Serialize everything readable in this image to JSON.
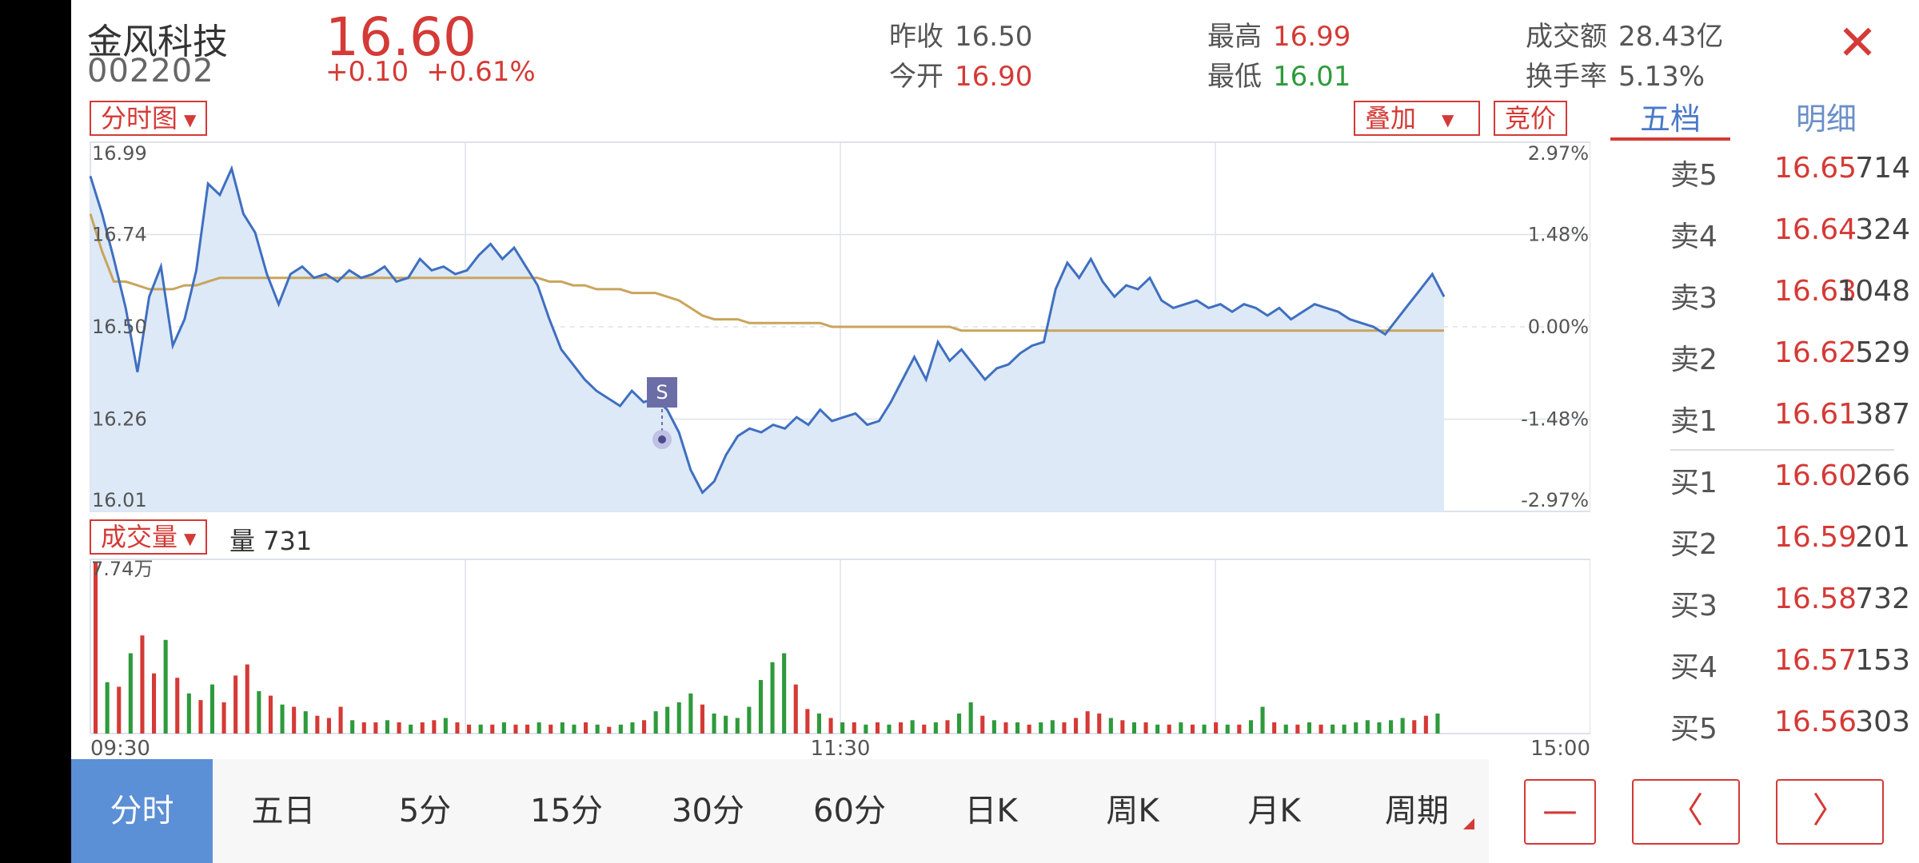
{
  "stock": {
    "name": "金风科技",
    "code": "002202",
    "price": "16.60",
    "change": "+0.10",
    "change_pct": "+0.61%"
  },
  "stats": {
    "prev_close_label": "昨收",
    "prev_close": "16.50",
    "open_label": "今开",
    "open": "16.90",
    "high_label": "最高",
    "high": "16.99",
    "low_label": "最低",
    "low": "16.01",
    "turnover_label": "成交额",
    "turnover": "28.43亿",
    "turnover_rate_label": "换手率",
    "turnover_rate": "5.13%"
  },
  "controls": {
    "chart_type": "分时图",
    "overlay": "叠加",
    "auction": "竞价",
    "volume_selector": "成交量",
    "volume_label": "量 731",
    "signal_marker": "S"
  },
  "tabs": {
    "depth": "五档",
    "detail": "明细"
  },
  "order_book": {
    "asks": [
      {
        "label": "卖5",
        "price": "16.65",
        "volume": "714"
      },
      {
        "label": "卖4",
        "price": "16.64",
        "volume": "324"
      },
      {
        "label": "卖3",
        "price": "16.63",
        "volume": "1048"
      },
      {
        "label": "卖2",
        "price": "16.62",
        "volume": "529"
      },
      {
        "label": "卖1",
        "price": "16.61",
        "volume": "387"
      }
    ],
    "bids": [
      {
        "label": "买1",
        "price": "16.60",
        "volume": "266"
      },
      {
        "label": "买2",
        "price": "16.59",
        "volume": "201"
      },
      {
        "label": "买3",
        "price": "16.58",
        "volume": "732"
      },
      {
        "label": "买4",
        "price": "16.57",
        "volume": "153"
      },
      {
        "label": "买5",
        "price": "16.56",
        "volume": "303"
      }
    ]
  },
  "periods": [
    "分时",
    "五日",
    "5分",
    "15分",
    "30分",
    "60分",
    "日K",
    "周K",
    "月K",
    "周期"
  ],
  "nav": {
    "minus": "—",
    "prev": "〈",
    "next": "〉"
  },
  "colors": {
    "up": "#d43a36",
    "down": "#2e9a3c",
    "price_line": "#3f6fc0",
    "avg_line": "#c9a45c",
    "area_fill": "#dde9f7",
    "active_tab": "#5b8fd6"
  },
  "chart_data": {
    "type": "line",
    "y_left_ticks": [
      "16.99",
      "16.74",
      "16.50",
      "16.26",
      "16.01"
    ],
    "y_right_ticks": [
      "2.97%",
      "1.48%",
      "0.00%",
      "-1.48%",
      "-2.97%"
    ],
    "x_ticks": [
      "09:30",
      "11:30",
      "15:00"
    ],
    "ylim": [
      16.01,
      16.99
    ],
    "volume_max_label": "7.74万",
    "price_series": [
      16.9,
      16.8,
      16.68,
      16.55,
      16.38,
      16.58,
      16.66,
      16.45,
      16.52,
      16.65,
      16.88,
      16.85,
      16.92,
      16.8,
      16.75,
      16.64,
      16.56,
      16.64,
      16.66,
      16.63,
      16.64,
      16.62,
      16.65,
      16.63,
      16.64,
      16.66,
      16.62,
      16.63,
      16.68,
      16.65,
      16.66,
      16.64,
      16.65,
      16.69,
      16.72,
      16.68,
      16.71,
      16.66,
      16.61,
      16.52,
      16.44,
      16.4,
      16.36,
      16.33,
      16.31,
      16.29,
      16.33,
      16.3,
      16.31,
      16.28,
      16.22,
      16.12,
      16.06,
      16.09,
      16.16,
      16.21,
      16.23,
      16.22,
      16.24,
      16.23,
      16.26,
      16.24,
      16.28,
      16.25,
      16.26,
      16.27,
      16.24,
      16.25,
      16.3,
      16.36,
      16.42,
      16.36,
      16.46,
      16.41,
      16.44,
      16.4,
      16.36,
      16.39,
      16.4,
      16.43,
      16.45,
      16.46,
      16.6,
      16.67,
      16.63,
      16.68,
      16.62,
      16.58,
      16.61,
      16.6,
      16.63,
      16.57,
      16.55,
      16.56,
      16.57,
      16.55,
      16.56,
      16.54,
      16.56,
      16.55,
      16.53,
      16.55,
      16.52,
      16.54,
      16.56,
      16.55,
      16.54,
      16.52,
      16.51,
      16.5,
      16.48,
      16.52,
      16.56,
      16.6,
      16.64,
      16.58
    ],
    "avg_series": [
      16.8,
      16.7,
      16.62,
      16.62,
      16.61,
      16.6,
      16.6,
      16.6,
      16.61,
      16.61,
      16.62,
      16.63,
      16.63,
      16.63,
      16.63,
      16.63,
      16.63,
      16.63,
      16.63,
      16.63,
      16.63,
      16.63,
      16.63,
      16.63,
      16.63,
      16.63,
      16.63,
      16.63,
      16.63,
      16.63,
      16.63,
      16.63,
      16.63,
      16.63,
      16.63,
      16.63,
      16.63,
      16.63,
      16.63,
      16.62,
      16.62,
      16.61,
      16.61,
      16.6,
      16.6,
      16.6,
      16.59,
      16.59,
      16.59,
      16.58,
      16.57,
      16.55,
      16.53,
      16.52,
      16.52,
      16.52,
      16.51,
      16.51,
      16.51,
      16.51,
      16.51,
      16.51,
      16.51,
      16.5,
      16.5,
      16.5,
      16.5,
      16.5,
      16.5,
      16.5,
      16.5,
      16.5,
      16.5,
      16.5,
      16.49,
      16.49,
      16.49,
      16.49,
      16.49,
      16.49,
      16.49,
      16.49,
      16.49,
      16.49,
      16.49,
      16.49,
      16.49,
      16.49,
      16.49,
      16.49,
      16.49,
      16.49,
      16.49,
      16.49,
      16.49,
      16.49,
      16.49,
      16.49,
      16.49,
      16.49,
      16.49,
      16.49,
      16.49,
      16.49,
      16.49,
      16.49,
      16.49,
      16.49,
      16.49,
      16.49,
      16.49,
      16.49,
      16.49,
      16.49,
      16.49,
      16.49
    ],
    "volume_series": [
      7.7,
      2.3,
      2.1,
      3.6,
      4.4,
      2.7,
      4.2,
      2.5,
      1.8,
      1.5,
      2.2,
      1.4,
      2.6,
      3.1,
      1.9,
      1.7,
      1.3,
      1.2,
      1.0,
      0.8,
      0.7,
      1.2,
      0.6,
      0.5,
      0.5,
      0.6,
      0.5,
      0.4,
      0.5,
      0.6,
      0.7,
      0.5,
      0.4,
      0.4,
      0.4,
      0.5,
      0.4,
      0.4,
      0.5,
      0.4,
      0.5,
      0.4,
      0.5,
      0.4,
      0.3,
      0.4,
      0.5,
      0.6,
      1.0,
      1.2,
      1.4,
      1.8,
      1.3,
      0.9,
      0.8,
      0.7,
      1.2,
      2.4,
      3.2,
      3.6,
      2.2,
      1.1,
      0.9,
      0.7,
      0.5,
      0.5,
      0.4,
      0.5,
      0.4,
      0.5,
      0.6,
      0.4,
      0.5,
      0.6,
      0.9,
      1.4,
      0.8,
      0.6,
      0.5,
      0.5,
      0.4,
      0.5,
      0.6,
      0.5,
      0.7,
      1.0,
      0.9,
      0.7,
      0.6,
      0.5,
      0.5,
      0.4,
      0.4,
      0.5,
      0.4,
      0.4,
      0.5,
      0.4,
      0.4,
      0.6,
      1.2,
      0.5,
      0.4,
      0.4,
      0.5,
      0.4,
      0.4,
      0.4,
      0.5,
      0.6,
      0.5,
      0.6,
      0.7,
      0.6,
      0.8,
      0.9
    ],
    "volume_colors": [
      "red",
      "green",
      "red",
      "green",
      "red",
      "red",
      "green",
      "red",
      "green",
      "red",
      "green",
      "red",
      "red",
      "red",
      "green",
      "red",
      "green",
      "red",
      "green",
      "red",
      "red",
      "red",
      "green",
      "red",
      "red",
      "green",
      "red",
      "green",
      "red",
      "red",
      "green",
      "red",
      "red",
      "green",
      "red",
      "green",
      "red",
      "red",
      "green",
      "red",
      "green",
      "green",
      "red",
      "green",
      "red",
      "green",
      "green",
      "red",
      "green",
      "green",
      "green",
      "green",
      "red",
      "green",
      "green",
      "green",
      "green",
      "green",
      "green",
      "green",
      "red",
      "red",
      "green",
      "red",
      "green",
      "red",
      "green",
      "red",
      "green",
      "red",
      "green",
      "red",
      "green",
      "red",
      "green",
      "green",
      "red",
      "green",
      "red",
      "green",
      "red",
      "green",
      "green",
      "red",
      "red",
      "red",
      "red",
      "green",
      "red",
      "green",
      "red",
      "green",
      "red",
      "green",
      "red",
      "green",
      "red",
      "green",
      "red",
      "green",
      "green",
      "red",
      "green",
      "red",
      "green",
      "red",
      "green",
      "green",
      "green",
      "green",
      "green",
      "green",
      "green",
      "red",
      "red",
      "green"
    ]
  }
}
